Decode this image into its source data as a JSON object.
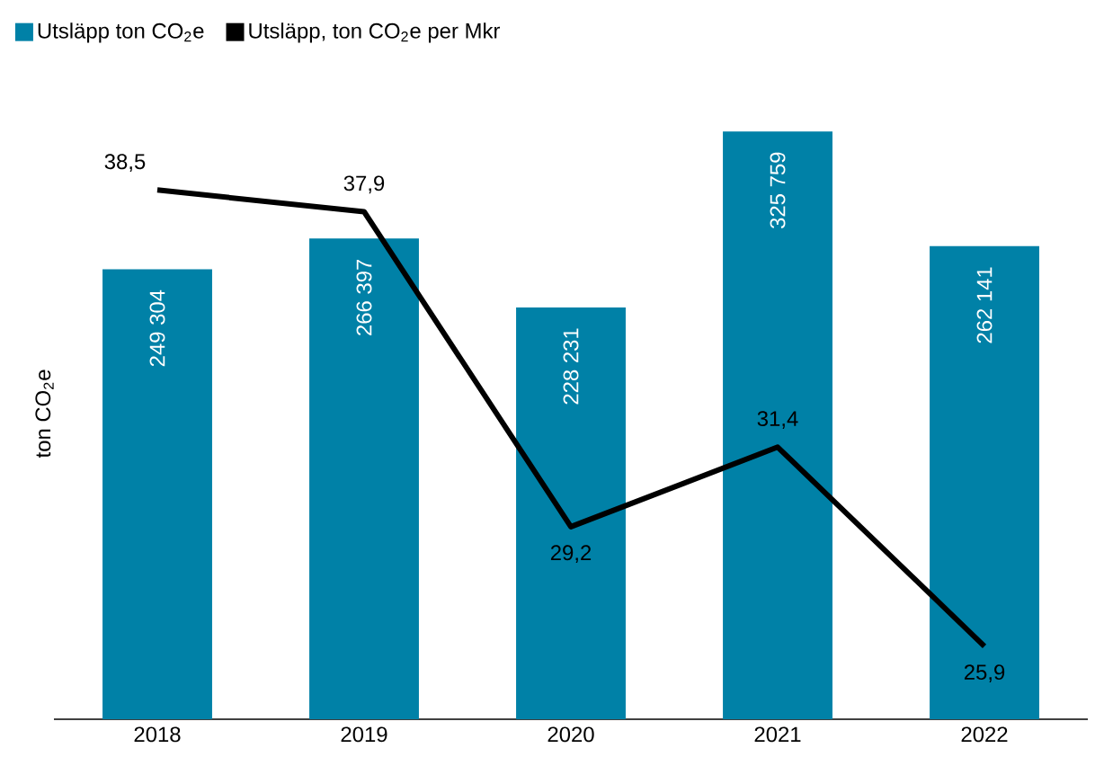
{
  "chart_data": {
    "type": "bar",
    "ylabel": "ton CO$_{2}$e",
    "categories": [
      "2018",
      "2019",
      "2020",
      "2021",
      "2022"
    ],
    "legend": "top left",
    "tick_labels": "x",
    "series": [
      {
        "name": "Utsläpp ton CO$_{2}$e",
        "color": "#0081a7",
        "values": [
          249304,
          266397,
          228231,
          325759,
          262141
        ],
        "value_labels": [
          "249 304",
          "266 397",
          "228 231",
          "325 759",
          "262 141"
        ]
      },
      {
        "name": "Utsläpp, ton CO$_{2}$e per Mkr",
        "type": "line",
        "axis": "y2",
        "color": "#000000",
        "values": [
          38.5,
          37.9,
          29.2,
          31.4,
          25.9
        ],
        "value_labels": [
          "38,5",
          "37,9",
          "29,2",
          "31,4",
          "25,9"
        ]
      }
    ]
  }
}
